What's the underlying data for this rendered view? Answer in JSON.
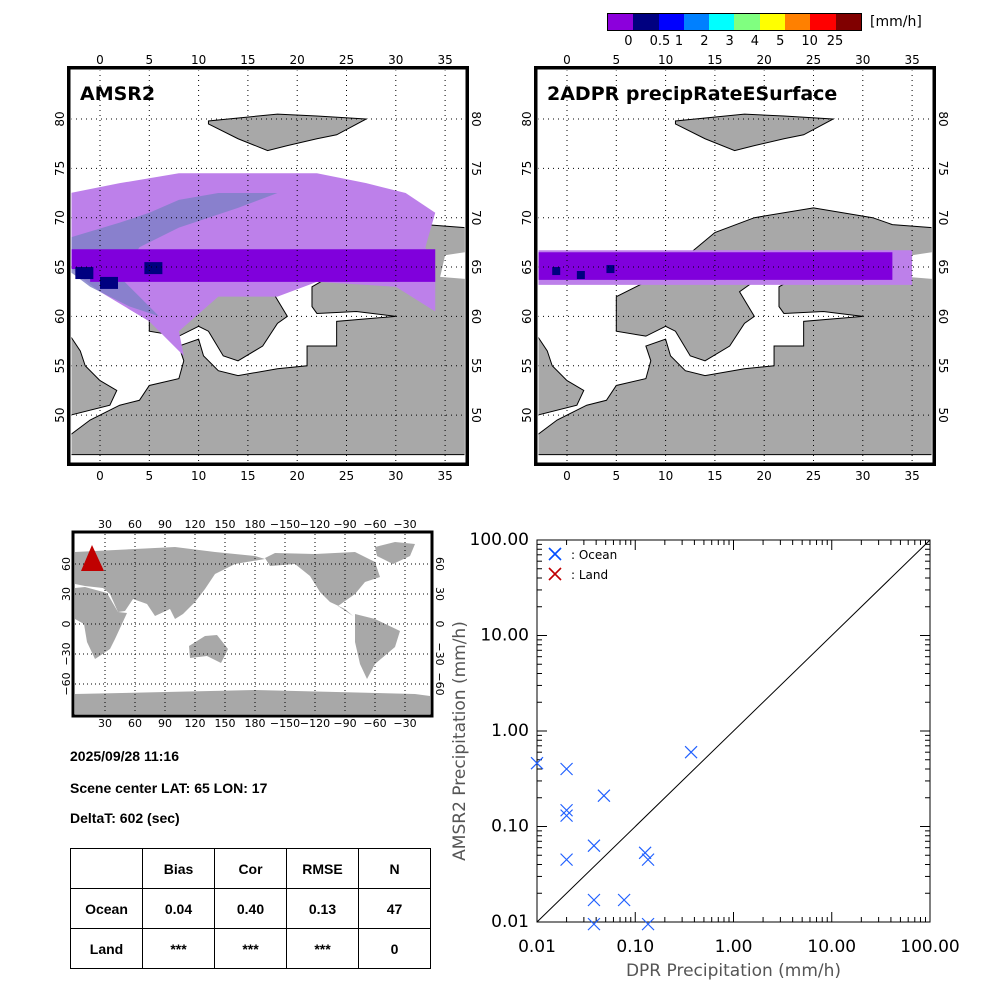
{
  "colorbar": {
    "unit": "[mm/h]",
    "labels": [
      "0",
      "0.5",
      "1",
      "2",
      "3",
      "4",
      "5",
      "10",
      "25"
    ],
    "colors": [
      "#8c00dc",
      "#000080",
      "#0000ff",
      "#0080ff",
      "#00ffff",
      "#80ff80",
      "#ffff00",
      "#ff8000",
      "#ff0000",
      "#800000"
    ]
  },
  "maps": [
    {
      "title": "AMSR2"
    },
    {
      "title": "2ADPR precipRateESurface"
    }
  ],
  "map_axes": {
    "lon_ticks": [
      "0",
      "5",
      "10",
      "15",
      "20",
      "25",
      "30",
      "35"
    ],
    "lat_ticks": [
      "80",
      "75",
      "70",
      "65",
      "60",
      "55",
      "50"
    ]
  },
  "world_map": {
    "lon_ticks": [
      "30",
      "60",
      "90",
      "120",
      "150",
      "180",
      "−150",
      "−120",
      "−90",
      "−60",
      "−30"
    ],
    "lat_ticks": [
      "60",
      "30",
      "0",
      "−30",
      "−60"
    ]
  },
  "info": {
    "datetime": "2025/09/28 11:16",
    "scene_center": "Scene center LAT: 65  LON:  17",
    "delta_t": "DeltaT:  602 (sec)"
  },
  "stats_table": {
    "headers": [
      "",
      "Bias",
      "Cor",
      "RMSE",
      "N"
    ],
    "rows": [
      [
        "Ocean",
        "0.04",
        "0.40",
        "0.13",
        "47"
      ],
      [
        "Land",
        "***",
        "***",
        "***",
        "0"
      ]
    ]
  },
  "chart_data": {
    "type": "scatter",
    "xlabel": "DPR Precipitation (mm/h)",
    "ylabel": "AMSR2 Precipitation (mm/h)",
    "xscale": "log",
    "yscale": "log",
    "xlim": [
      0.01,
      100
    ],
    "ylim": [
      0.01,
      100
    ],
    "x_tick_labels": [
      "0.01",
      "0.10",
      "1.00",
      "10.00",
      "100.00"
    ],
    "y_tick_labels": [
      "0.01",
      "0.10",
      "1.00",
      "10.00",
      "100.00"
    ],
    "legend": {
      "placement": "top-left",
      "entries": [
        {
          "label": ": Ocean",
          "color": "#0050ff"
        },
        {
          "label": ": Land",
          "color": "#c00000"
        }
      ]
    },
    "reference_line": "1:1",
    "series": [
      {
        "name": "Ocean",
        "color": "#2060ff",
        "points": [
          [
            0.01,
            0.46
          ],
          [
            0.02,
            0.4
          ],
          [
            0.048,
            0.21
          ],
          [
            0.02,
            0.148
          ],
          [
            0.02,
            0.13
          ],
          [
            0.02,
            0.045
          ],
          [
            0.038,
            0.063
          ],
          [
            0.126,
            0.053
          ],
          [
            0.135,
            0.045
          ],
          [
            0.038,
            0.017
          ],
          [
            0.077,
            0.017
          ],
          [
            0.038,
            0.0095
          ],
          [
            0.135,
            0.0095
          ],
          [
            0.37,
            0.6
          ]
        ]
      },
      {
        "name": "Land",
        "color": "#c00000",
        "points": []
      }
    ]
  }
}
